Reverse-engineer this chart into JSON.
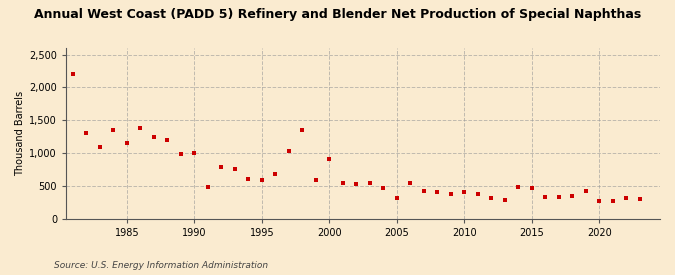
{
  "title": "Annual West Coast (PADD 5) Refinery and Blender Net Production of Special Naphthas",
  "ylabel": "Thousand Barrels",
  "source": "Source: U.S. Energy Information Administration",
  "background_color": "#faebd0",
  "plot_background_color": "#faebd0",
  "marker_color": "#cc0000",
  "years": [
    1981,
    1982,
    1983,
    1984,
    1985,
    1986,
    1987,
    1988,
    1989,
    1990,
    1991,
    1992,
    1993,
    1994,
    1995,
    1996,
    1997,
    1998,
    1999,
    2000,
    2001,
    2002,
    2003,
    2004,
    2005,
    2006,
    2007,
    2008,
    2009,
    2010,
    2011,
    2012,
    2013,
    2014,
    2015,
    2016,
    2017,
    2018,
    2019,
    2020,
    2021,
    2022,
    2023
  ],
  "values": [
    2200,
    1310,
    1100,
    1360,
    1150,
    1380,
    1250,
    1200,
    990,
    1000,
    490,
    790,
    760,
    610,
    590,
    690,
    1040,
    1360,
    590,
    910,
    540,
    530,
    540,
    470,
    320,
    540,
    420,
    410,
    380,
    410,
    380,
    320,
    290,
    480,
    470,
    340,
    340,
    350,
    420,
    270,
    270,
    320,
    310
  ],
  "ylim": [
    0,
    2600
  ],
  "yticks": [
    0,
    500,
    1000,
    1500,
    2000,
    2500
  ],
  "ytick_labels": [
    "0",
    "500",
    "1,000",
    "1,500",
    "2,000",
    "2,500"
  ],
  "xticks": [
    1985,
    1990,
    1995,
    2000,
    2005,
    2010,
    2015,
    2020
  ],
  "xlim": [
    1980.5,
    2024.5
  ],
  "grid_color": "#999999",
  "grid_style": "--",
  "grid_alpha": 0.6,
  "title_fontsize": 9,
  "ylabel_fontsize": 7,
  "tick_fontsize": 7,
  "source_fontsize": 6.5
}
